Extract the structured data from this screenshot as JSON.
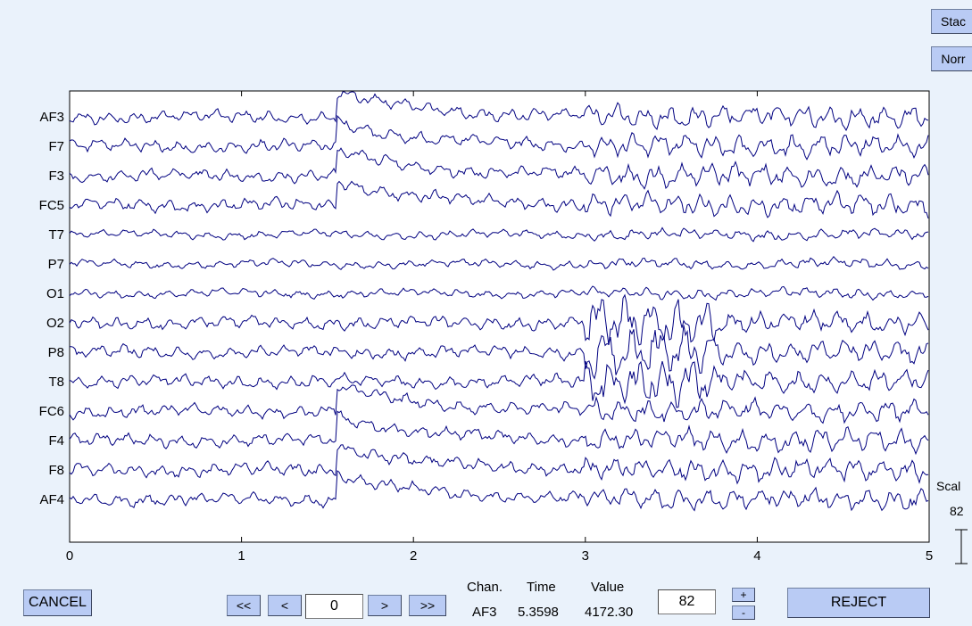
{
  "side_buttons": {
    "stack_label": "Stac",
    "norm_label": "Norr"
  },
  "channels": [
    "AF3",
    "F7",
    "F3",
    "FC5",
    "T7",
    "P7",
    "O1",
    "O2",
    "P8",
    "T8",
    "FC6",
    "F4",
    "F8",
    "AF4"
  ],
  "time_axis": {
    "min": 0,
    "max": 5,
    "ticks": [
      "0",
      "1",
      "2",
      "3",
      "4",
      "5"
    ]
  },
  "scale": {
    "label": "Scal",
    "value": "82"
  },
  "controls": {
    "cancel_label": "CANCEL",
    "first_label": "<<",
    "prev_label": "<",
    "position_value": "0",
    "next_label": ">",
    "last_label": ">>",
    "chan_header": "Chan.",
    "time_header": "Time",
    "value_header": "Value",
    "chan_value": "AF3",
    "time_value": "5.3598",
    "value_value": "4172.30",
    "scale_value": "82",
    "plus_label": "+",
    "minus_label": "-",
    "reject_label": "REJECT"
  },
  "colors": {
    "trace": "#000080",
    "button": "#b9cbf4",
    "background": "#eaf2fb"
  },
  "icons": {
    "scale-bar": "scale-bar-icon"
  }
}
